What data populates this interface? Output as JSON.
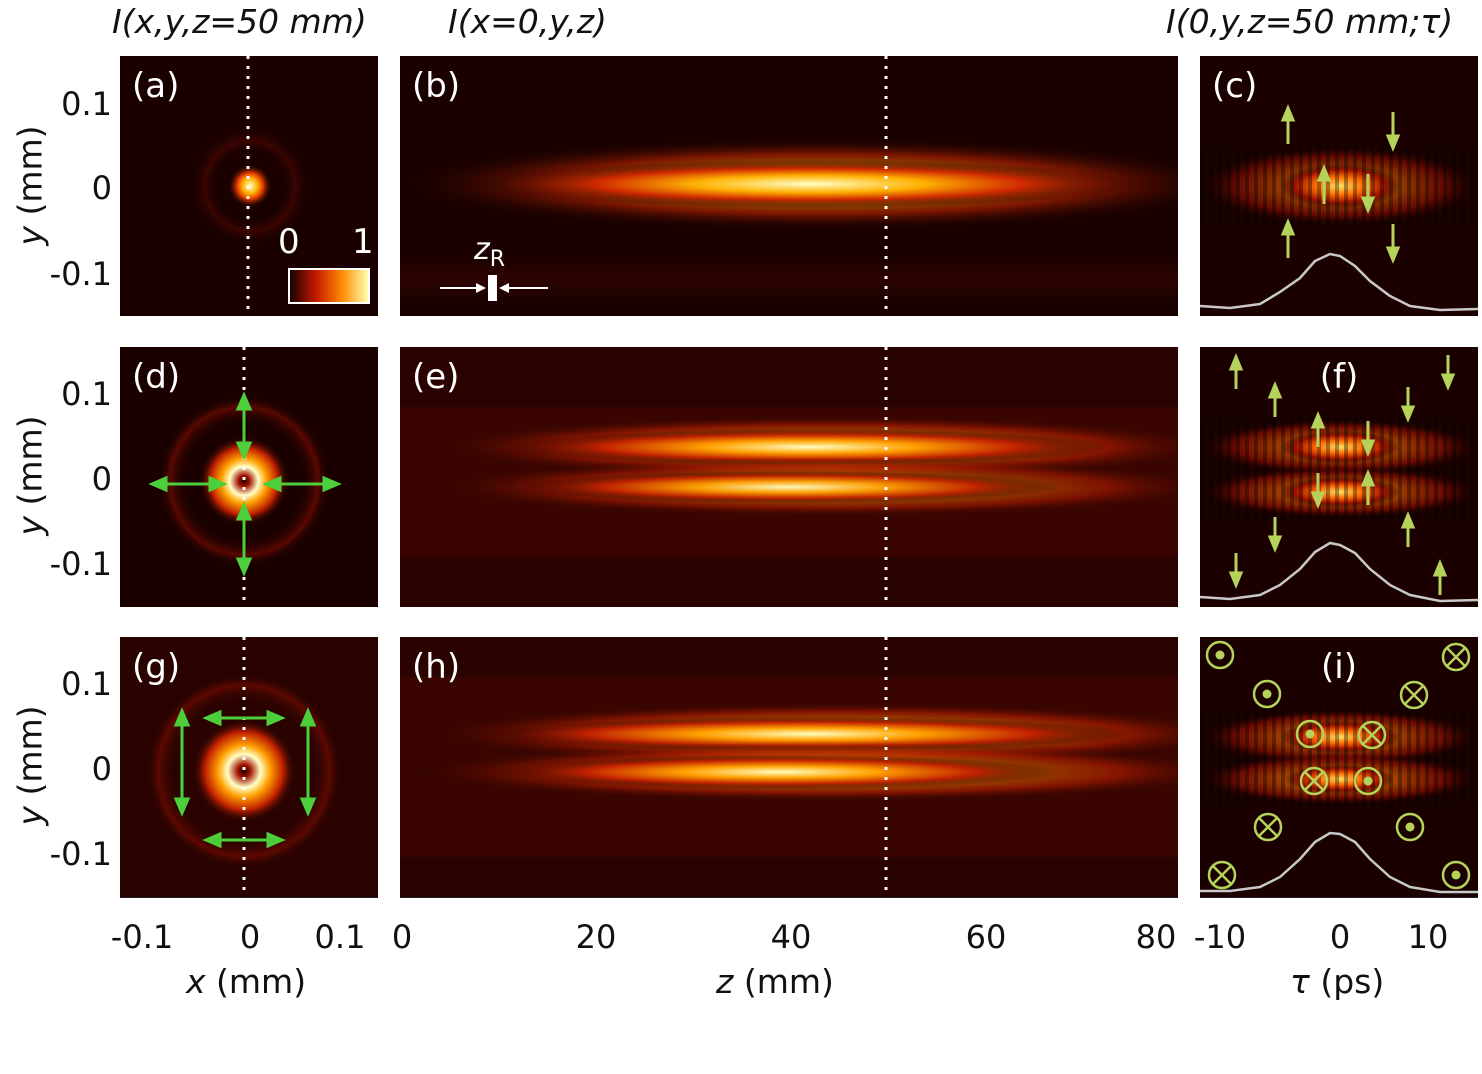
{
  "titles": {
    "col1": "I(x,y,z=50 mm)",
    "col2": "I(x=0,y,z)",
    "col3": "I(0,y,z=50 mm;τ)"
  },
  "panels": {
    "a": "(a)",
    "b": "(b)",
    "c": "(c)",
    "d": "(d)",
    "e": "(e)",
    "f": "(f)",
    "g": "(g)",
    "h": "(h)",
    "i": "(i)"
  },
  "y_ticks": [
    "0.1",
    "0",
    "-0.1"
  ],
  "ylabel": {
    "var": "y",
    "unit": " (mm)"
  },
  "x_axes": {
    "x": {
      "ticks": [
        "-0.1",
        "0",
        "0.1"
      ],
      "var": "x",
      "unit": " (mm)"
    },
    "z": {
      "ticks": [
        "0",
        "20",
        "40",
        "60",
        "80"
      ],
      "var": "z",
      "unit": " (mm)"
    },
    "tau": {
      "ticks": [
        "-10",
        "0",
        "10"
      ],
      "var": "τ",
      "unit": " (ps)"
    }
  },
  "colorbar": {
    "min": "0",
    "max": "1"
  },
  "zr_label": {
    "main": "z",
    "sub": "R"
  },
  "colors": {
    "background": "#ffffff",
    "heat_dark": "#1a0100",
    "heat_mid": "#c41a00",
    "heat_hot": "#ff8a00",
    "heat_max": "#ffffb0",
    "arrow_green": "#4ccf3a",
    "arrow_olive": "#b5d35a",
    "marker_dots": "#ffffff",
    "profile_line": "#c8c8c8"
  }
}
